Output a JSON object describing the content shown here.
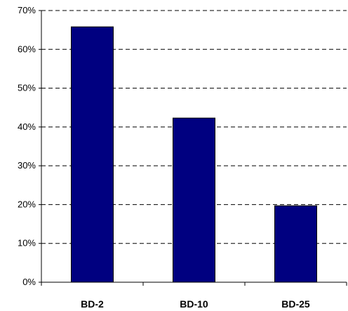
{
  "chart_data": {
    "type": "bar",
    "categories": [
      "BD-2",
      "BD-10",
      "BD-25"
    ],
    "values": [
      65.8,
      42.3,
      19.7
    ],
    "value_format": "percent",
    "title": "",
    "xlabel": "",
    "ylabel": "",
    "ylim": [
      0,
      70
    ],
    "yticks": [
      0,
      10,
      20,
      30,
      40,
      50,
      60,
      70
    ],
    "ytick_labels": [
      "0%",
      "10%",
      "20%",
      "30%",
      "40%",
      "50%",
      "60%",
      "70%"
    ],
    "grid": "horizontal dashed",
    "legend": "none",
    "colors": {
      "bar": "#000080",
      "bar_stroke": "#000000",
      "grid": "#000000",
      "axis": "#000000"
    }
  }
}
